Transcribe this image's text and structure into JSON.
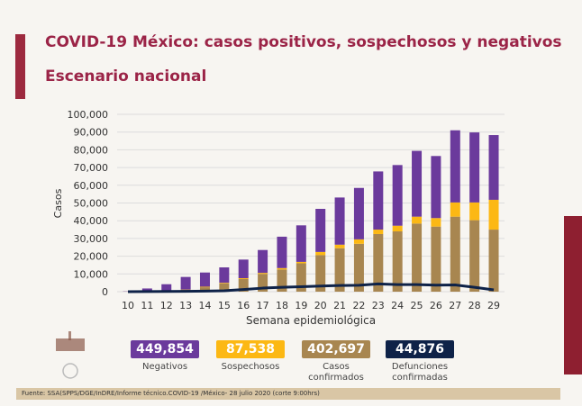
{
  "header": {
    "title": "COVID-19 México: casos positivos, sospechosos y negativos",
    "subtitle": "Escenario nacional"
  },
  "colors": {
    "negativos": "#6b3a9c",
    "sospechosos": "#fcb814",
    "confirmados": "#a88650",
    "defunciones": "#0e2248",
    "title": "#9b2447"
  },
  "chart_data": {
    "type": "bar",
    "stacked": true,
    "xlabel": "Semana epidemiológica",
    "ylabel": "Casos",
    "ylim": [
      0,
      100000
    ],
    "yticks": [
      "0",
      "10,000",
      "20,000",
      "30,000",
      "40,000",
      "50,000",
      "60,000",
      "70,000",
      "80,000",
      "90,000",
      "100,000"
    ],
    "grid": true,
    "categories": [
      "10",
      "11",
      "12",
      "13",
      "14",
      "15",
      "16",
      "17",
      "18",
      "19",
      "20",
      "21",
      "22",
      "23",
      "24",
      "25",
      "26",
      "27",
      "28",
      "29"
    ],
    "series": [
      {
        "name": "Casos confirmados",
        "values": [
          50,
          200,
          400,
          1000,
          2500,
          4600,
          7100,
          10000,
          12500,
          16000,
          20600,
          24500,
          27000,
          32500,
          34000,
          38400,
          36700,
          42300,
          40300,
          35000
        ]
      },
      {
        "name": "Sospechosos",
        "values": [
          10,
          50,
          100,
          200,
          300,
          400,
          500,
          600,
          800,
          800,
          1800,
          2000,
          2500,
          2500,
          3200,
          3900,
          4800,
          8000,
          10000,
          16800
        ]
      },
      {
        "name": "Negativos",
        "values": [
          140,
          1550,
          3700,
          7100,
          8000,
          8700,
          10500,
          12900,
          17700,
          20600,
          24300,
          26600,
          29000,
          32800,
          34200,
          37100,
          35000,
          40700,
          39500,
          36500
        ]
      }
    ],
    "line": {
      "name": "Defunciones confirmadas",
      "values": [
        0,
        50,
        100,
        200,
        300,
        500,
        1200,
        2000,
        2500,
        2800,
        3200,
        3500,
        3600,
        4400,
        4000,
        4000,
        3700,
        3800,
        2500,
        1000
      ]
    }
  },
  "stats": [
    {
      "value": "449,854",
      "label": "Negativos",
      "color": "#6b3a9c"
    },
    {
      "value": "87,538",
      "label": "Sospechosos",
      "color": "#fcb814"
    },
    {
      "value": "402,697",
      "label": "Casos confirmados",
      "color": "#a88650"
    },
    {
      "value": "44,876",
      "label": "Defunciones confirmadas",
      "color": "#0e2248"
    }
  ],
  "footer": "Fuente: SSA(SPPS/DGE/InDRE/Informe técnico.COVID-19 /México- 28 julio 2020 (corte 9:00hrs)"
}
